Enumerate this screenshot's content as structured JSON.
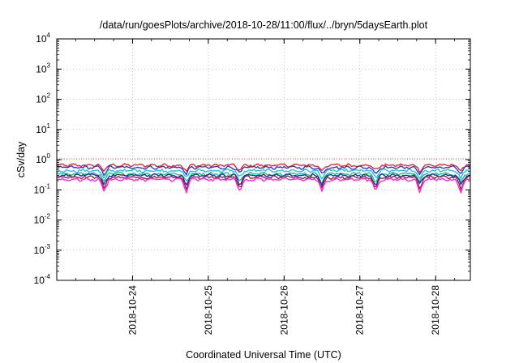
{
  "chart_data": {
    "type": "line",
    "title": "/data/run/goesPlots/archive/2018-10-28/11:00/flux/../bryn/5daysEarth.plot",
    "xlabel": "Coordinated Universal Time (UTC)",
    "ylabel": "cSv/day",
    "x_range": [
      "2018-10-23T00:00",
      "2018-10-28T11:00"
    ],
    "x_ticks": [
      "2018-10-24",
      "2018-10-25",
      "2018-10-26",
      "2018-10-27",
      "2018-10-28"
    ],
    "y_scale": "log",
    "ylim": [
      0.0001,
      10000
    ],
    "y_ticks": [
      {
        "base": "10",
        "exp": "4"
      },
      {
        "base": "10",
        "exp": "3"
      },
      {
        "base": "10",
        "exp": "2"
      },
      {
        "base": "10",
        "exp": "1"
      },
      {
        "base": "10",
        "exp": "0"
      },
      {
        "base": "10",
        "exp": "-1"
      },
      {
        "base": "10",
        "exp": "-2"
      },
      {
        "base": "10",
        "exp": "-3"
      },
      {
        "base": "10",
        "exp": "-4"
      }
    ],
    "grid": true,
    "reference_level": 1,
    "series": [
      {
        "color": "#e8262a",
        "approx_level": 0.65
      },
      {
        "color": "#2b3bd9",
        "approx_level": 0.55
      },
      {
        "color": "#22c3e0",
        "approx_level": 0.43
      },
      {
        "color": "#22c08a",
        "approx_level": 0.34
      },
      {
        "color": "#2a2aa8",
        "approx_level": 0.3
      },
      {
        "color": "#8b2a3a",
        "approx_level": 0.26
      },
      {
        "color": "#ff22e8",
        "approx_level": 0.22
      }
    ],
    "dips_at": [
      "2018-10-23T15:00",
      "2018-10-24T17:00",
      "2018-10-25T10:00",
      "2018-10-26T12:00",
      "2018-10-27T05:00",
      "2018-10-27T19:00",
      "2018-10-28T08:00"
    ]
  }
}
